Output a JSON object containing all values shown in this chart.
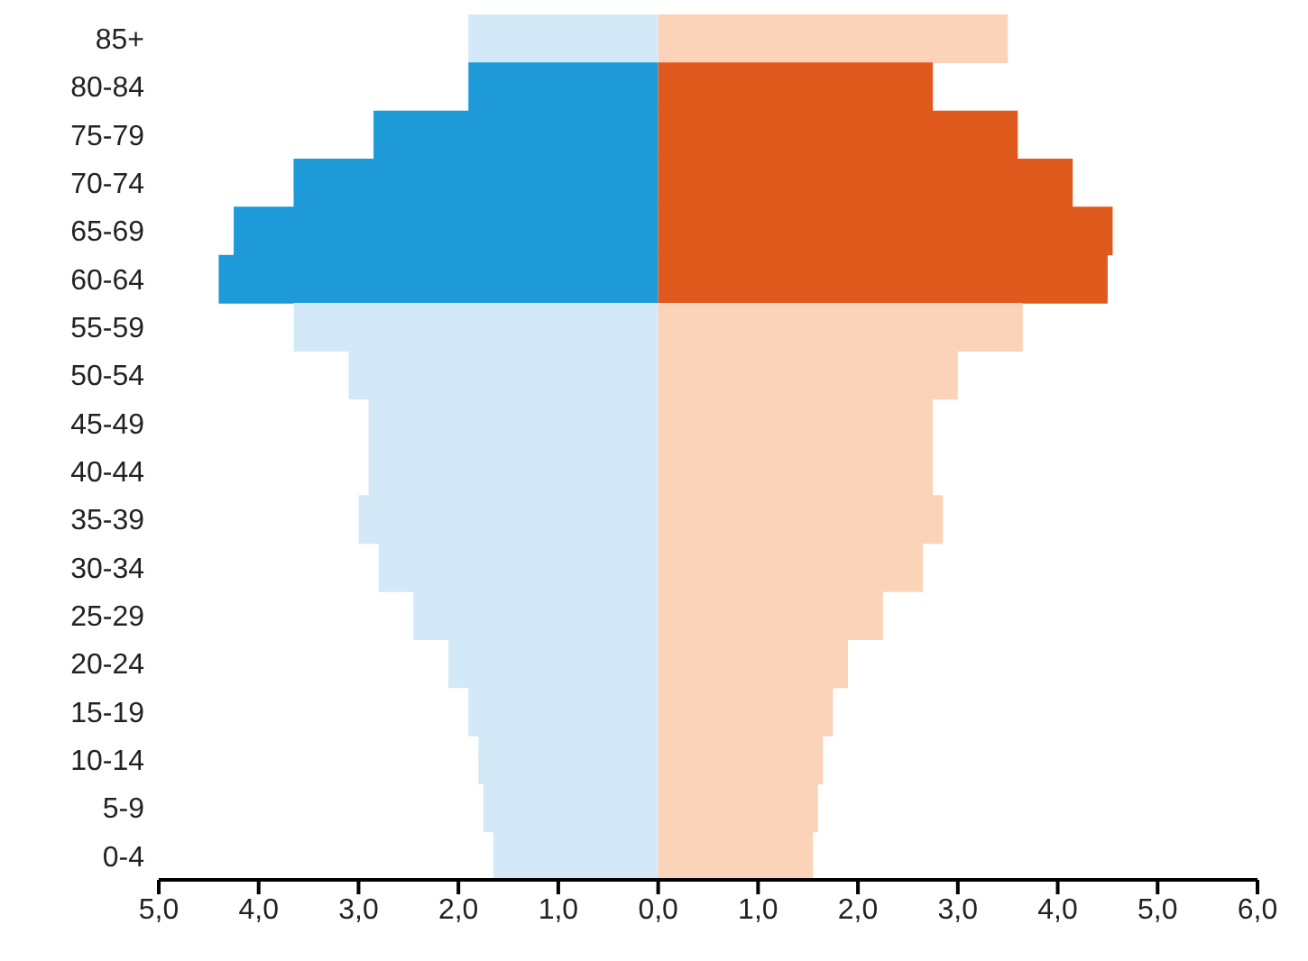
{
  "chart_data": {
    "type": "bar",
    "orientation": "horizontal",
    "stacked": true,
    "grid": false,
    "legend": false,
    "categories": [
      "85+",
      "80-84",
      "75-79",
      "70-74",
      "65-69",
      "60-64",
      "55-59",
      "50-54",
      "45-49",
      "40-44",
      "35-39",
      "30-34",
      "25-29",
      "20-24",
      "15-19",
      "10-14",
      "5-9",
      "0-4"
    ],
    "series": [
      {
        "colors": [
          "#d4e9f7",
          "#1e9ad8",
          "#1e9ad8",
          "#1e9ad8",
          "#1e9ad8",
          "#1e9ad8",
          "#d4e9f7",
          "#d4e9f7",
          "#d4e9f7",
          "#d4e9f7",
          "#d4e9f7",
          "#d4e9f7",
          "#d4e9f7",
          "#d4e9f7",
          "#d4e9f7",
          "#d4e9f7",
          "#d4e9f7",
          "#d4e9f7"
        ],
        "values": [
          -1.9,
          -1.9,
          -2.85,
          -3.65,
          -4.25,
          -4.4,
          -3.65,
          -3.1,
          -2.9,
          -2.9,
          -3.0,
          -2.8,
          -2.45,
          -2.1,
          -1.9,
          -1.8,
          -1.75,
          -1.65
        ]
      },
      {
        "colors": [
          "#fbd3b8",
          "#e05a1e",
          "#e05a1e",
          "#e05a1e",
          "#e05a1e",
          "#e05a1e",
          "#fbd3b8",
          "#fbd3b8",
          "#fbd3b8",
          "#fbd3b8",
          "#fbd3b8",
          "#fbd3b8",
          "#fbd3b8",
          "#fbd3b8",
          "#fbd3b8",
          "#fbd3b8",
          "#fbd3b8",
          "#fbd3b8"
        ],
        "values": [
          3.5,
          2.75,
          3.6,
          4.15,
          4.55,
          4.5,
          3.65,
          3.0,
          2.75,
          2.75,
          2.85,
          2.65,
          2.25,
          1.9,
          1.75,
          1.65,
          1.6,
          1.55
        ]
      }
    ],
    "xlim": [
      -5,
      6
    ],
    "xticks": [
      {
        "value": -5,
        "label": "5,0"
      },
      {
        "value": -4,
        "label": "4,0"
      },
      {
        "value": -3,
        "label": "3,0"
      },
      {
        "value": -2,
        "label": "2,0"
      },
      {
        "value": -1,
        "label": "1,0"
      },
      {
        "value": 0,
        "label": "0,0"
      },
      {
        "value": 1,
        "label": "1,0"
      },
      {
        "value": 2,
        "label": "2,0"
      },
      {
        "value": 3,
        "label": "3,0"
      },
      {
        "value": 4,
        "label": "4,0"
      },
      {
        "value": 5,
        "label": "5,0"
      },
      {
        "value": 6,
        "label": "6,0"
      }
    ]
  }
}
